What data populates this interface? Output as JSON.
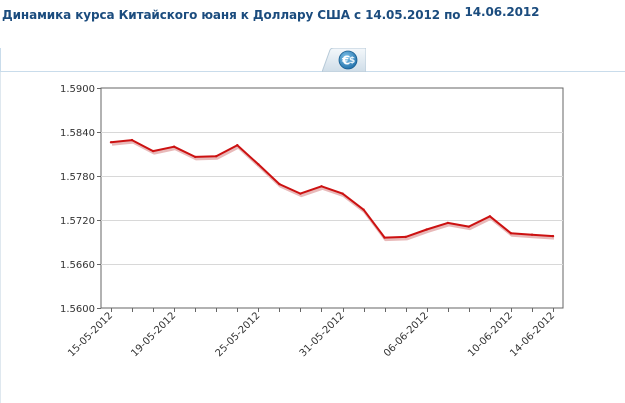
{
  "header": {
    "title_main": "Динамика курса Китайского юаня к Доллару США с 14.05.2012 по",
    "title_end": "14.06.2012"
  },
  "tab": {
    "icon": "euro-dollar-icon",
    "accent": "#2f7fb6"
  },
  "chart_data": {
    "type": "line",
    "title": "",
    "xlabel": "",
    "ylabel": "",
    "ylim": [
      1.56,
      1.59
    ],
    "yticks": [
      "1.5900",
      "1.5840",
      "1.5780",
      "1.5720",
      "1.5660",
      "1.5600"
    ],
    "xticks": [
      "15-05-2012",
      "19-05-2012",
      "25-05-2012",
      "31-05-2012",
      "06-06-2012",
      "10-06-2012",
      "14-06-2012"
    ],
    "xtick_indices": [
      0,
      3,
      7,
      11,
      15,
      19,
      21
    ],
    "grid": true,
    "legend": "none",
    "line_color": "#cc1111",
    "series": [
      {
        "values": [
          1.5826,
          1.5829,
          1.5814,
          1.582,
          1.5806,
          1.5807,
          1.5822,
          1.5796,
          1.5769,
          1.5756,
          1.5766,
          1.5756,
          1.5734,
          1.5696,
          1.5697,
          1.5707,
          1.5716,
          1.5711,
          1.5725,
          1.5702,
          1.57,
          1.5698
        ]
      }
    ]
  }
}
